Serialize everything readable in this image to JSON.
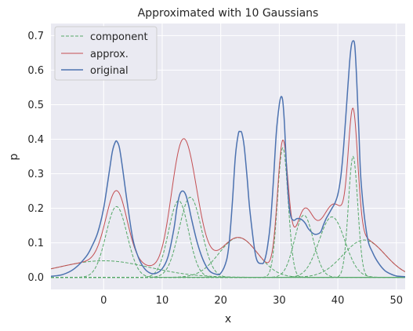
{
  "chart_data": {
    "type": "line",
    "title": "Approximated with 10 Gaussians",
    "xlabel": "x",
    "ylabel": "p",
    "xlim": [
      -9,
      51.5
    ],
    "ylim": [
      -0.035,
      0.735
    ],
    "xticks": [
      0,
      10,
      20,
      30,
      40,
      50
    ],
    "yticks": [
      0.0,
      0.1,
      0.2,
      0.3,
      0.4,
      0.5,
      0.6,
      0.7
    ],
    "grid": true,
    "legend_position": "top-left",
    "colors": {
      "component": "#55a868",
      "approx": "#c44e52",
      "original": "#4c72b0",
      "background": "#eaeaf2",
      "grid": "#ffffff"
    },
    "components": [
      {
        "mean": 2.2,
        "std": 1.8,
        "peak": 0.205
      },
      {
        "mean": 0.0,
        "std": 7.8,
        "peak": 0.048
      },
      {
        "mean": 12.8,
        "std": 1.7,
        "peak": 0.222
      },
      {
        "mean": 14.8,
        "std": 1.9,
        "peak": 0.232
      },
      {
        "mean": 23.0,
        "std": 3.3,
        "peak": 0.115
      },
      {
        "mean": 30.6,
        "std": 0.9,
        "peak": 0.375
      },
      {
        "mean": 34.2,
        "std": 1.6,
        "peak": 0.18
      },
      {
        "mean": 39.0,
        "std": 2.2,
        "peak": 0.175
      },
      {
        "mean": 42.6,
        "std": 0.8,
        "peak": 0.35
      },
      {
        "mean": 44.5,
        "std": 3.6,
        "peak": 0.108
      }
    ],
    "original": {
      "x": [
        -9,
        -7,
        -5,
        -3,
        -2,
        -1,
        0,
        1,
        1.5,
        2,
        2.3,
        2.7,
        3.2,
        4,
        5,
        6,
        7,
        8,
        9,
        10,
        11,
        12,
        12.5,
        13,
        13.5,
        14,
        14.5,
        15,
        16,
        17,
        18,
        19,
        20,
        21,
        21.5,
        22,
        22.5,
        23,
        23.3,
        23.6,
        24,
        24.5,
        25,
        26,
        27,
        27.5,
        28,
        28.5,
        29,
        29.5,
        30,
        30.3,
        30.6,
        30.9,
        31.2,
        31.6,
        32,
        32.5,
        33,
        33.5,
        34,
        34.5,
        35,
        36,
        37,
        37.5,
        38,
        38.5,
        39,
        39.5,
        40,
        40.5,
        41,
        41.5,
        42,
        42.3,
        42.6,
        42.9,
        43.2,
        43.6,
        44,
        45,
        46,
        47,
        48,
        49,
        50,
        51.5
      ],
      "y": [
        0.003,
        0.008,
        0.025,
        0.06,
        0.09,
        0.13,
        0.2,
        0.31,
        0.365,
        0.392,
        0.393,
        0.375,
        0.32,
        0.22,
        0.11,
        0.055,
        0.025,
        0.012,
        0.012,
        0.025,
        0.06,
        0.14,
        0.2,
        0.24,
        0.25,
        0.24,
        0.21,
        0.17,
        0.1,
        0.05,
        0.02,
        0.01,
        0.012,
        0.05,
        0.11,
        0.22,
        0.35,
        0.415,
        0.422,
        0.418,
        0.38,
        0.29,
        0.19,
        0.06,
        0.04,
        0.05,
        0.09,
        0.16,
        0.28,
        0.42,
        0.5,
        0.523,
        0.51,
        0.44,
        0.33,
        0.22,
        0.175,
        0.165,
        0.17,
        0.17,
        0.165,
        0.155,
        0.14,
        0.125,
        0.13,
        0.15,
        0.17,
        0.185,
        0.2,
        0.215,
        0.24,
        0.29,
        0.38,
        0.5,
        0.62,
        0.67,
        0.685,
        0.67,
        0.58,
        0.42,
        0.27,
        0.12,
        0.07,
        0.04,
        0.02,
        0.01,
        0.004,
        0.002
      ]
    },
    "legend": [
      "component",
      "approx.",
      "original"
    ]
  }
}
